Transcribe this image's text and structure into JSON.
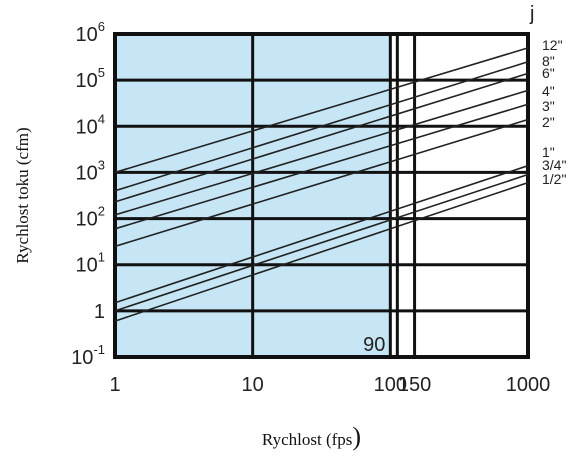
{
  "chart_data": {
    "type": "line",
    "title": "",
    "xlabel": "Rychlost (fps",
    "xlabel_paren": ")",
    "ylabel": "Rychlost toku (cfm)",
    "x_scale": "log",
    "y_scale": "log",
    "xlim": [
      1,
      1000
    ],
    "ylim": [
      0.1,
      1000000
    ],
    "grid": true,
    "highlight_region": {
      "x_from": 1,
      "x_to": 100,
      "color": "#c6e6f5"
    },
    "annotation": "90",
    "corner_mark": "j",
    "x_ticks": [
      {
        "value": 1,
        "label": "1"
      },
      {
        "value": 10,
        "label": "10"
      },
      {
        "value": 100,
        "label": "100"
      },
      {
        "value": 150,
        "label": "150"
      },
      {
        "value": 1000,
        "label": "1000"
      }
    ],
    "y_ticks": [
      {
        "value": 0.1,
        "label": "10",
        "sup": "-1"
      },
      {
        "value": 1,
        "label": "1",
        "sup": ""
      },
      {
        "value": 10,
        "label": "10",
        "sup": "1"
      },
      {
        "value": 100,
        "label": "10",
        "sup": "2"
      },
      {
        "value": 1000,
        "label": "10",
        "sup": "3"
      },
      {
        "value": 10000,
        "label": "10",
        "sup": "4"
      },
      {
        "value": 100000,
        "label": "10",
        "sup": "5"
      },
      {
        "value": 1000000,
        "label": "10",
        "sup": "6"
      }
    ],
    "series": [
      {
        "name": "12\"",
        "x": [
          1,
          1000
        ],
        "y": [
          1000,
          500000
        ]
      },
      {
        "name": "8\"",
        "x": [
          1,
          1000
        ],
        "y": [
          400,
          250000
        ]
      },
      {
        "name": "6\"",
        "x": [
          1,
          1000
        ],
        "y": [
          230,
          140000
        ]
      },
      {
        "name": "4\"",
        "x": [
          1,
          1000
        ],
        "y": [
          120,
          60000
        ]
      },
      {
        "name": "3\"",
        "x": [
          1,
          1000
        ],
        "y": [
          60,
          30000
        ]
      },
      {
        "name": "2\"",
        "x": [
          1,
          1000
        ],
        "y": [
          25,
          14000
        ]
      },
      {
        "name": "1\"",
        "x": [
          1,
          1000
        ],
        "y": [
          1.5,
          1400
        ]
      },
      {
        "name": "3/4\"",
        "x": [
          1,
          1000
        ],
        "y": [
          1,
          900
        ]
      },
      {
        "name": "1/2\"",
        "x": [
          1,
          1000
        ],
        "y": [
          0.6,
          600
        ]
      }
    ]
  }
}
